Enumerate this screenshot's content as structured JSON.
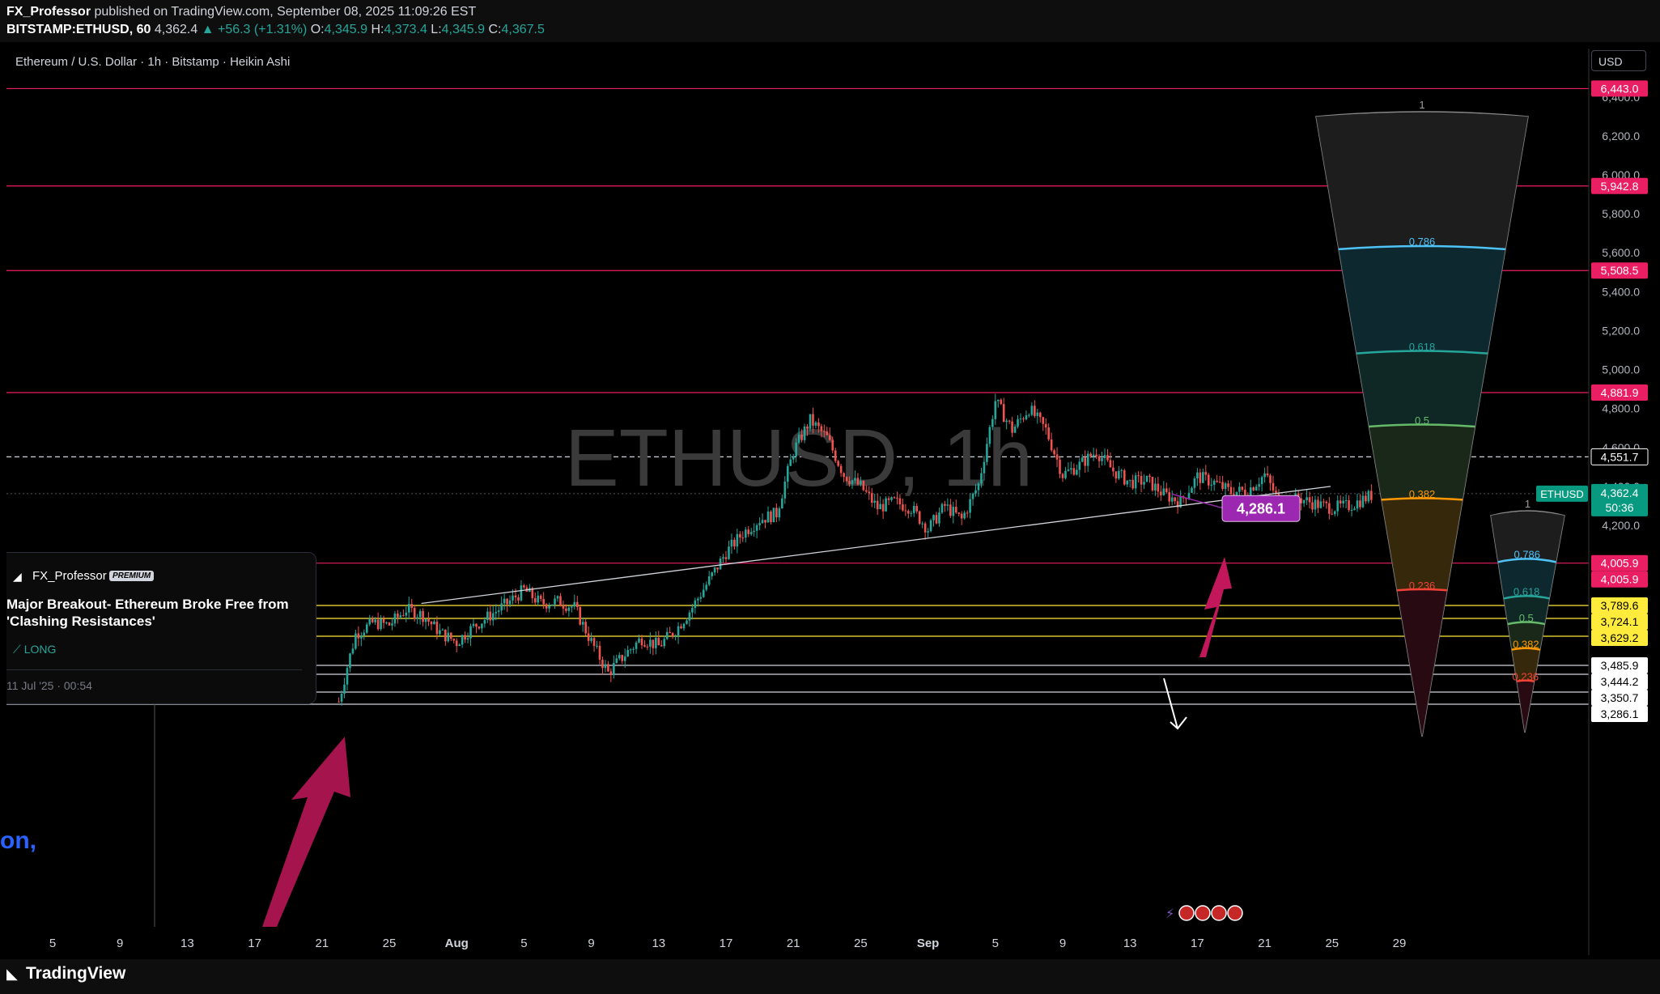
{
  "header": {
    "author": "FX_Professor",
    "published": "published on TradingView.com, September 08, 2025 11:09:26 EST",
    "symbol_line": "BITSTAMP:ETHUSD, 60",
    "last": "4,362.4",
    "change": "▲ +56.3 (+1.31%)",
    "o_label": "O:",
    "o": "4,345.9",
    "h_label": "H:",
    "h": "4,373.4",
    "l_label": "L:",
    "l": "4,345.9",
    "c_label": "C:",
    "c": "4,367.5"
  },
  "chart_title": "Ethereum / U.S. Dollar · 1h · Bitstamp · Heikin Ashi",
  "watermark": "ETHUSD, 1h",
  "currency_button": "USD",
  "idea_card": {
    "author": "FX_Professor",
    "badge": "PREMIUM",
    "title": "Major Breakout- Ethereum Broke Free from 'Clashing Resistances'",
    "direction": "LONG",
    "date": "11 Jul '25 · 00:54"
  },
  "cut_text": "on,",
  "footer_logo": "TradingView",
  "colors": {
    "background": "#000000",
    "up": "#26a69a",
    "down": "#ef5350",
    "resistance_line": "#e91e63",
    "support_line": "#ffeb3b",
    "arrow": "#c2185b",
    "callout": "#9c27b0",
    "current_price": "#089981"
  },
  "chart_data": {
    "type": "candlestick",
    "symbol": "ETHUSD",
    "interval": "1h",
    "style": "Heikin Ashi",
    "ylim": [
      3286,
      6500
    ],
    "y_ticks": [
      4200,
      4400,
      4600,
      4800,
      5000,
      5200,
      5400,
      5600,
      5800,
      6000,
      6200,
      6400
    ],
    "y_tick_labels": [
      "4,200.0",
      "4,400.0",
      "4,600.0",
      "4,800.0",
      "5,000.0",
      "5,200.0",
      "5,400.0",
      "5,600.0",
      "5,800.0",
      "6,000.0",
      "6,200.0",
      "6,400.0"
    ],
    "x_tick_labels": [
      "5",
      "9",
      "13",
      "17",
      "21",
      "25",
      "Aug",
      "5",
      "9",
      "13",
      "17",
      "21",
      "25",
      "Sep",
      "5",
      "9",
      "13",
      "17",
      "21",
      "25",
      "29"
    ],
    "price_path": [
      [
        17,
        3300
      ],
      [
        17.5,
        3480
      ],
      [
        18,
        3640
      ],
      [
        19,
        3700
      ],
      [
        20,
        3690
      ],
      [
        21,
        3770
      ],
      [
        22,
        3740
      ],
      [
        23,
        3650
      ],
      [
        24,
        3600
      ],
      [
        25,
        3680
      ],
      [
        26,
        3740
      ],
      [
        27,
        3800
      ],
      [
        28,
        3870
      ],
      [
        29,
        3800
      ],
      [
        30,
        3810
      ],
      [
        31,
        3780
      ],
      [
        32,
        3600
      ],
      [
        33,
        3450
      ],
      [
        34,
        3540
      ],
      [
        35,
        3620
      ],
      [
        36,
        3580
      ],
      [
        37,
        3660
      ],
      [
        38,
        3780
      ],
      [
        39,
        3920
      ],
      [
        40,
        4060
      ],
      [
        41,
        4160
      ],
      [
        42,
        4230
      ],
      [
        43,
        4260
      ],
      [
        44,
        4580
      ],
      [
        45,
        4740
      ],
      [
        46,
        4650
      ],
      [
        47,
        4460
      ],
      [
        48,
        4400
      ],
      [
        49,
        4290
      ],
      [
        50,
        4320
      ],
      [
        51,
        4290
      ],
      [
        52,
        4180
      ],
      [
        53,
        4300
      ],
      [
        54,
        4230
      ],
      [
        55,
        4410
      ],
      [
        56,
        4840
      ],
      [
        57,
        4690
      ],
      [
        58,
        4800
      ],
      [
        59,
        4690
      ],
      [
        60,
        4460
      ],
      [
        61,
        4510
      ],
      [
        62,
        4580
      ],
      [
        63,
        4480
      ],
      [
        64,
        4420
      ],
      [
        65,
        4430
      ],
      [
        66,
        4360
      ],
      [
        67,
        4320
      ],
      [
        68,
        4450
      ],
      [
        69,
        4420
      ],
      [
        70,
        4370
      ],
      [
        71,
        4380
      ],
      [
        72,
        4460
      ],
      [
        73,
        4300
      ],
      [
        74,
        4340
      ],
      [
        75,
        4310
      ],
      [
        76,
        4290
      ],
      [
        77,
        4300
      ],
      [
        78,
        4340
      ],
      [
        78.5,
        4362
      ]
    ],
    "current_price": "4,362.4",
    "countdown": "50:36",
    "current_price_label": "ETHUSD",
    "price_labels": [
      {
        "value": 6443.0,
        "label": "6,443.0",
        "color": "#e91e63"
      },
      {
        "value": 5942.8,
        "label": "5,942.8",
        "color": "#e91e63"
      },
      {
        "value": 5508.5,
        "label": "5,508.5",
        "color": "#e91e63"
      },
      {
        "value": 4881.9,
        "label": "4,881.9",
        "color": "#e91e63"
      },
      {
        "value": 4551.7,
        "label": "4,551.7",
        "color": "#ffffff"
      },
      {
        "value": 4005.9,
        "label": "4,005.9",
        "color": "#e91e63"
      },
      {
        "value": 3789.6,
        "label": "3,789.6",
        "color": "#ffeb3b"
      },
      {
        "value": 3724.1,
        "label": "3,724.1",
        "color": "#ffeb3b"
      },
      {
        "value": 3629.2,
        "label": "3,629.2",
        "color": "#ffeb3b"
      },
      {
        "value": 3485.9,
        "label": "3,485.9",
        "color": "#ffffff"
      },
      {
        "value": 3444.2,
        "label": "3,444.2",
        "color": "#ffffff"
      },
      {
        "value": 3350.7,
        "label": "3,350.7",
        "color": "#ffffff"
      },
      {
        "value": 3286.1,
        "label": "3,286.1",
        "color": "#ffffff"
      }
    ],
    "horizontal_levels": [
      6443.0,
      5942.8,
      5508.5,
      4881.9,
      4551.7,
      4005.9,
      3789.6,
      3724.1,
      3629.2,
      3485.9,
      3444.2,
      3350.7,
      3286.1
    ],
    "trendline": {
      "from": [
        22,
        3800
      ],
      "to": [
        88,
        4400
      ]
    },
    "callout": {
      "label": "4,286.1",
      "value": 4286.1
    },
    "fib_fan_large": {
      "levels": [
        "1",
        "0.786",
        "0.618",
        "0.5",
        "0.382",
        "0.236"
      ]
    },
    "fib_fan_small": {
      "levels": [
        "1",
        "0.786",
        "0.618",
        "0.5",
        "0.382",
        "0.236"
      ]
    }
  }
}
